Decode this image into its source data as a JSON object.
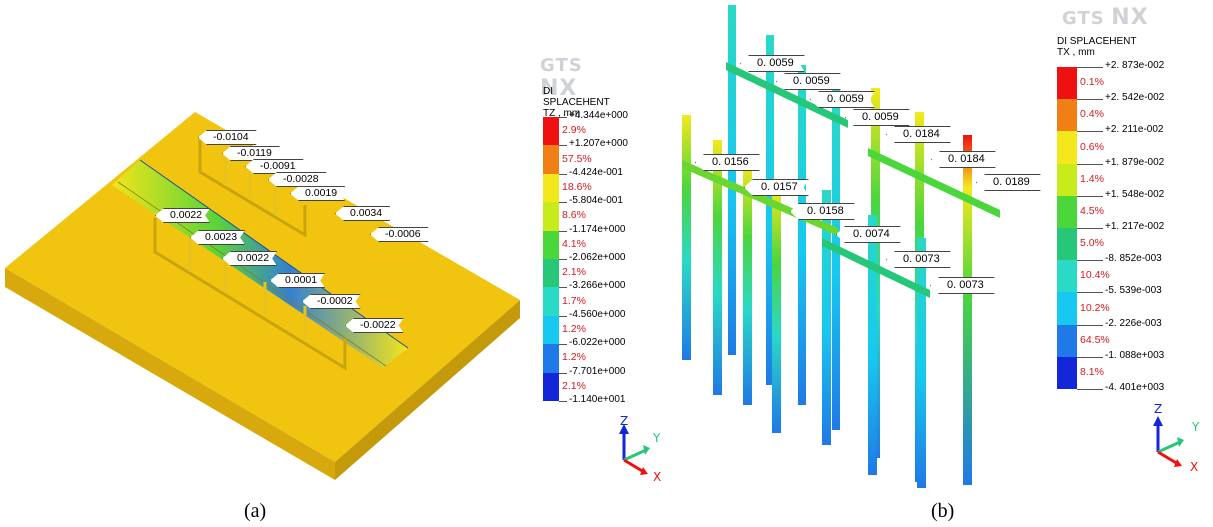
{
  "panel_a": {
    "caption": "(a)",
    "logo": {
      "brand": "GTS",
      "product": "NX"
    },
    "legend": {
      "title": "DI SPLACEHENT",
      "subtitle": "TZ , mm",
      "ticks": [
        "+4.344e+000",
        "+1.207e+000",
        "-4.424e-001",
        "-5.804e-001",
        "-1.174e+000",
        "-2.062e+000",
        "-3.266e+000",
        "-4.560e+000",
        "-6.022e+000",
        "-7.701e+000",
        "-1.140e+001"
      ],
      "percents": [
        "2.9%",
        "57.5%",
        "18.6%",
        "8.6%",
        "4.1%",
        "2.1%",
        "1.7%",
        "1.2%",
        "1.2%",
        "2.1%"
      ],
      "colors": [
        "#ee1111",
        "#f07f15",
        "#f3e81c",
        "#c8ec1b",
        "#4bd63c",
        "#27c779",
        "#2ad9c6",
        "#17c8f0",
        "#1f79e6",
        "#1326d8"
      ]
    },
    "callouts": [
      "-0.0104",
      "-0.0119",
      "-0.0091",
      "-0.0028",
      "0.0019",
      "0.0034",
      "-0.0006",
      "0.0022",
      "0.0023",
      "0.0022",
      "0.0001",
      "-0.0002",
      "-0.0022"
    ],
    "axes": {
      "z": "Z",
      "y": "Y",
      "x": "X"
    }
  },
  "panel_b": {
    "caption": "(b)",
    "logo": {
      "brand": "GTS",
      "product": "NX"
    },
    "legend": {
      "title": "DI SPLACEHENT",
      "subtitle": "TX , mm",
      "ticks": [
        "+2. 873e-002",
        "+2. 542e-002",
        "+2. 211e-002",
        "+1. 879e-002",
        "+1. 548e-002",
        "+1. 217e-002",
        "-8. 852e-003",
        "-5. 539e-003",
        "-2. 226e-003",
        "-1. 088e+003",
        "-4. 401e+003"
      ],
      "percents": [
        "0.1%",
        "0.4%",
        "0.6%",
        "1.4%",
        "4.5%",
        "5.0%",
        "10.4%",
        "10.2%",
        "64.5%",
        "8.1%"
      ],
      "colors": [
        "#ee1111",
        "#f07f15",
        "#f3e81c",
        "#c8ec1b",
        "#4bd63c",
        "#27c779",
        "#2ad9c6",
        "#17c8f0",
        "#1f79e6",
        "#1326d8"
      ]
    },
    "callouts": [
      "0. 0059",
      "0. 0059",
      "0. 0059",
      "0. 0059",
      "0. 0184",
      "0. 0184",
      "0. 0189",
      "0. 0156",
      "0. 0157",
      "0. 0158",
      "0. 0074",
      "0. 0073",
      "0. 0073"
    ],
    "axes": {
      "z": "Z",
      "y": "Y",
      "x": "X"
    }
  }
}
